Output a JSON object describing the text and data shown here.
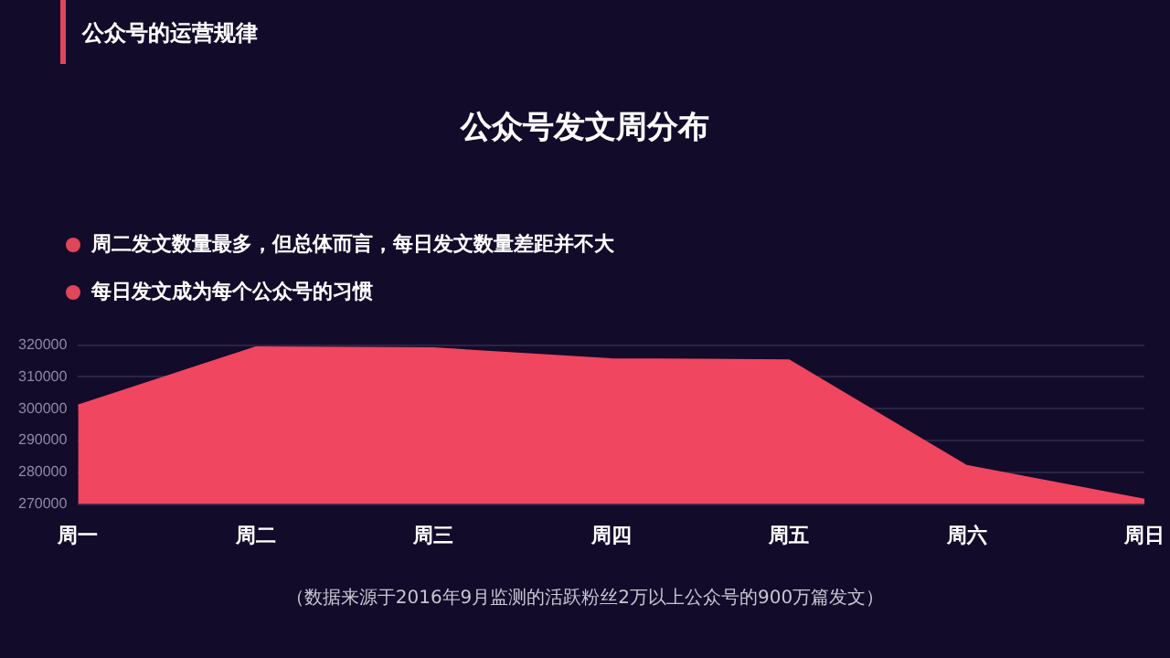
{
  "chart_data": {
    "type": "area",
    "title": "公众号发文周分布",
    "annotations": [
      "公众号的运营规律",
      "周二发文数量最多，但总体而言，每日发文数量差距并不大",
      "每日发文成为每个公众号的习惯",
      "（数据来源于2016年9月监测的活跃粉丝2万以上公众号的900万篇发文）"
    ],
    "categories": [
      "周一",
      "周二",
      "周三",
      "周四",
      "周五",
      "周六",
      "周日"
    ],
    "series": [
      {
        "color": "#f0465f",
        "values": [
          301000,
          319300,
          319000,
          315600,
          315200,
          282000,
          271400
        ]
      }
    ],
    "ylim": [
      270000,
      320000
    ],
    "yticks": [
      270000,
      280000,
      290000,
      300000,
      310000,
      320000
    ],
    "grid": "y",
    "legend": false
  }
}
